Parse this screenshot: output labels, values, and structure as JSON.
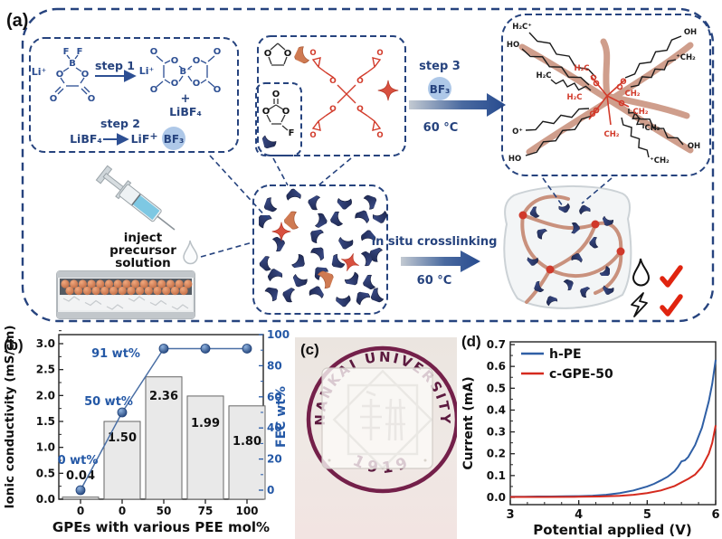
{
  "panel_a": {
    "label": "(a)",
    "atoms": {
      "li": "Li⁺",
      "f": "F",
      "b": "B",
      "bminus": "B⁻",
      "o": "O"
    },
    "box1": {
      "step1": "step 1",
      "step2": "step 2",
      "plus": "+",
      "libf4": "LiBF₄",
      "lif": "LiF",
      "bf3": "BF₃"
    },
    "monomers": {
      "o": "O",
      "f": "F"
    },
    "step3": {
      "label": "step 3",
      "bf3": "BF₃",
      "temp": "60 °C"
    },
    "crosslink": {
      "label": "in situ crosslinking",
      "temp": "60 °C"
    },
    "inject": {
      "line1": "inject",
      "line2": "precursor",
      "line3": "solution"
    },
    "network": {
      "labels": [
        "H₂C⁺",
        "OH",
        "HO",
        "⁺CH₂",
        "H₂C",
        "O⁺",
        "CH₂",
        "HO",
        "⁺CH₂",
        "OH"
      ],
      "red_labels": [
        "H₂C",
        "H₂C",
        "O",
        "O",
        "O",
        "CH₂",
        "CH₂",
        "CH₂"
      ]
    }
  },
  "panel_b": {
    "label": "(b)"
  },
  "panel_c": {
    "label": "(c)",
    "seal_text": "NANKAI UNIVERSITY",
    "seal_year": "1919"
  },
  "panel_d": {
    "label": "(d)"
  },
  "chart_data": [
    {
      "id": "ionic-conductivity-bar",
      "type": "bar",
      "categories": [
        "0",
        "0",
        "50",
        "75",
        "100"
      ],
      "series": [
        {
          "name": "Ionic conductivity",
          "axis": "left",
          "values": [
            0.04,
            1.5,
            2.36,
            1.99,
            1.8
          ]
        },
        {
          "name": "FEC wt%",
          "axis": "right",
          "values": [
            0,
            50,
            91,
            91,
            91
          ]
        }
      ],
      "bar_value_labels": [
        "0.04",
        "1.50",
        "2.36",
        "1.99",
        "1.80"
      ],
      "line_annotations": [
        "0 wt%",
        "50 wt%",
        "91 wt%"
      ],
      "xlabel": "GPEs with various PEE mol%",
      "ylabel_left": "Ionic conductivity (mS/cm)",
      "ylabel_right": "FEC wt%",
      "yticks_left": [
        "0.0",
        "0.5",
        "1.0",
        "1.5",
        "2.0",
        "2.5",
        "3.0"
      ],
      "yticks_right": [
        "0",
        "20",
        "40",
        "60",
        "80",
        "100"
      ],
      "ylim_left": [
        0,
        3.3
      ],
      "ylim_right": [
        0,
        105
      ],
      "bar_color": "#e9e9e9",
      "line_color": "#4a6fa5",
      "accent_color": "#2458a6"
    },
    {
      "id": "lsv-curves",
      "type": "line",
      "xlabel": "Potential applied (V)",
      "ylabel": "Current (mA)",
      "xlim": [
        3,
        6
      ],
      "ylim": [
        0,
        0.7
      ],
      "xticks": [
        "3",
        "4",
        "5",
        "6"
      ],
      "yticks": [
        "0.0",
        "0.1",
        "0.2",
        "0.3",
        "0.4",
        "0.5",
        "0.6",
        "0.7"
      ],
      "legend_position": "top-left",
      "series": [
        {
          "name": "h-PE",
          "color": "#2f5fa5",
          "x": [
            3.0,
            3.2,
            3.4,
            3.6,
            3.8,
            4.0,
            4.2,
            4.4,
            4.6,
            4.8,
            5.0,
            5.1,
            5.2,
            5.3,
            5.4,
            5.45,
            5.5,
            5.55,
            5.6,
            5.7,
            5.8,
            5.9,
            5.95,
            6.0
          ],
          "y": [
            0.003,
            0.003,
            0.004,
            0.004,
            0.005,
            0.006,
            0.008,
            0.012,
            0.02,
            0.032,
            0.05,
            0.062,
            0.078,
            0.095,
            0.12,
            0.14,
            0.165,
            0.17,
            0.185,
            0.24,
            0.32,
            0.44,
            0.52,
            0.63
          ]
        },
        {
          "name": "c-GPE-50",
          "color": "#d52a1e",
          "x": [
            3.0,
            3.5,
            4.0,
            4.3,
            4.6,
            4.8,
            5.0,
            5.2,
            5.4,
            5.6,
            5.7,
            5.8,
            5.9,
            5.95,
            6.0
          ],
          "y": [
            0.002,
            0.002,
            0.003,
            0.004,
            0.007,
            0.012,
            0.02,
            0.032,
            0.052,
            0.085,
            0.105,
            0.14,
            0.2,
            0.25,
            0.33
          ]
        }
      ]
    }
  ]
}
